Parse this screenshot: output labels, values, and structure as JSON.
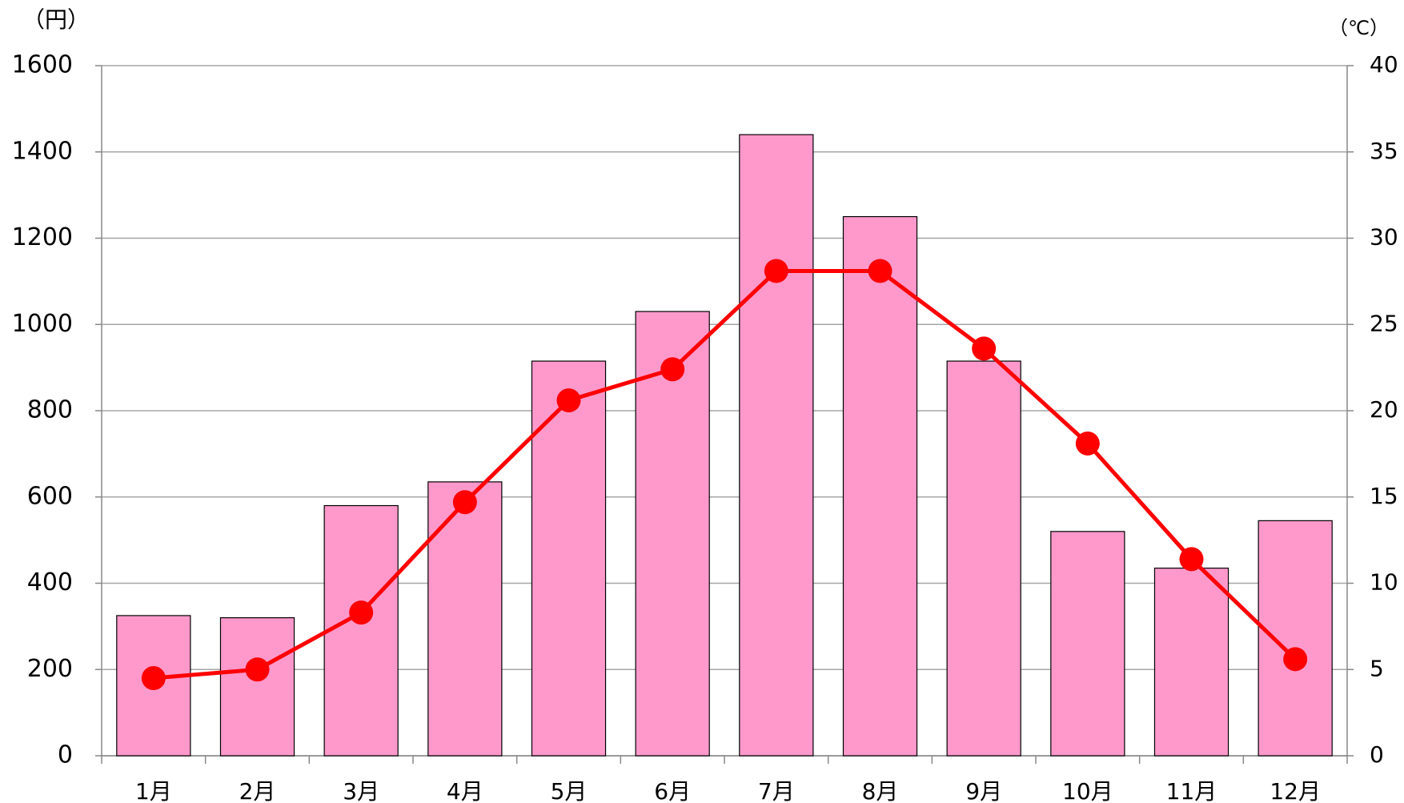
{
  "chart_data": {
    "type": "bar_line",
    "y_label": "（円）",
    "y2_label": "（℃）",
    "categories": [
      "1月",
      "2月",
      "3月",
      "4月",
      "5月",
      "6月",
      "7月",
      "8月",
      "9月",
      "10月",
      "11月",
      "12月"
    ],
    "series": [
      {
        "type": "bar",
        "color": "#ff99cc",
        "values": [
          325,
          320,
          580,
          635,
          915,
          1030,
          1440,
          1250,
          915,
          520,
          435,
          545
        ]
      },
      {
        "type": "line",
        "axis": "y2",
        "color": "#ff0000",
        "values": [
          4.5,
          5.0,
          8.3,
          14.7,
          20.6,
          22.4,
          28.1,
          28.1,
          23.6,
          18.1,
          11.4,
          5.6
        ]
      }
    ],
    "ylim": [
      0,
      1600
    ],
    "yticks": [
      0,
      200,
      400,
      600,
      800,
      1000,
      1200,
      1400,
      1600
    ],
    "y2lim": [
      0,
      40
    ],
    "y2ticks": [
      0,
      5,
      10,
      15,
      20,
      25,
      30,
      35,
      40
    ],
    "grid": true
  }
}
